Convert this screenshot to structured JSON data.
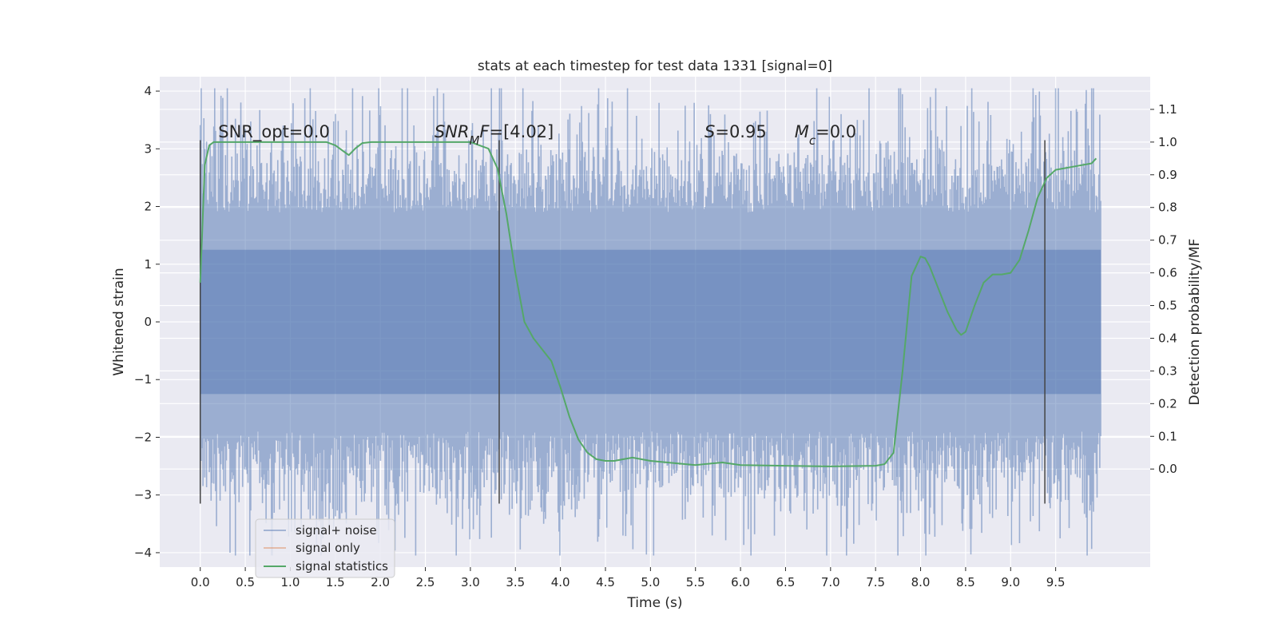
{
  "chart_data": {
    "type": "line",
    "title": "stats at each timestep for test data 1331 [signal=0]",
    "xlabel": "Time (s)",
    "ylabel": "Whitened strain",
    "y2label": "Detection probability/MF",
    "xlim": [
      -0.45,
      10.55
    ],
    "ylim": [
      -4.25,
      4.25
    ],
    "y2lim": [
      -0.3,
      1.2
    ],
    "xticks": [
      0.0,
      0.5,
      1.0,
      1.5,
      2.0,
      2.5,
      3.0,
      3.5,
      4.0,
      4.5,
      5.0,
      5.5,
      6.0,
      6.5,
      7.0,
      7.5,
      8.0,
      8.5,
      9.0,
      9.5
    ],
    "xtick_labels": [
      "0.0",
      "0.5",
      "1.0",
      "1.5",
      "2.0",
      "2.5",
      "3.0",
      "3.5",
      "4.0",
      "4.5",
      "5.0",
      "5.5",
      "6.0",
      "6.5",
      "7.0",
      "7.5",
      "8.0",
      "8.5",
      "9.0",
      "9.5"
    ],
    "yticks": [
      4,
      3,
      2,
      1,
      0,
      -1,
      -2,
      -3,
      -4
    ],
    "ytick_labels": [
      "4",
      "3",
      "2",
      "1",
      "0",
      "−1",
      "−2",
      "−3",
      "−4"
    ],
    "y2ticks": [
      1.1,
      1.0,
      0.9,
      0.8,
      0.7,
      0.6,
      0.5,
      0.4,
      0.3,
      0.2,
      0.1,
      0.0
    ],
    "y2tick_labels": [
      "1.1",
      "1.0",
      "0.9",
      "0.8",
      "0.7",
      "0.6",
      "0.5",
      "0.4",
      "0.3",
      "0.2",
      "0.1",
      "0.0"
    ],
    "grid": true,
    "legend_position": "lower-left",
    "noise_trace": {
      "t_start": 0.0,
      "t_end": 10.0,
      "samples": 1000,
      "typical_envelope": [
        -2.0,
        2.0
      ],
      "max_value": 4.05,
      "min_value": -4.05
    },
    "series": [
      {
        "name": "signal+ noise",
        "color": "#4c72b0",
        "axis": "left",
        "style": "dense noise trace, alpha 0.5"
      },
      {
        "name": "signal only",
        "color": "#dd8452",
        "axis": "left",
        "x": [],
        "y": []
      },
      {
        "name": "signal statistics",
        "color": "#55a868",
        "axis": "right",
        "x": [
          0.0,
          0.05,
          0.1,
          0.15,
          0.25,
          0.5,
          1.0,
          1.4,
          1.5,
          1.6,
          1.65,
          1.72,
          1.8,
          1.9,
          2.0,
          2.5,
          3.0,
          3.2,
          3.3,
          3.4,
          3.5,
          3.6,
          3.7,
          3.9,
          4.0,
          4.1,
          4.2,
          4.3,
          4.4,
          4.5,
          4.6,
          4.7,
          4.8,
          5.0,
          5.5,
          5.6,
          5.8,
          6.0,
          6.5,
          7.0,
          7.5,
          7.6,
          7.7,
          7.8,
          7.9,
          8.0,
          8.05,
          8.1,
          8.2,
          8.3,
          8.4,
          8.45,
          8.5,
          8.6,
          8.7,
          8.8,
          8.9,
          9.0,
          9.1,
          9.2,
          9.3,
          9.4,
          9.5,
          9.7,
          9.9,
          9.95
        ],
        "y": [
          0.57,
          0.93,
          0.99,
          1.0,
          1.0,
          1.0,
          1.0,
          1.0,
          0.99,
          0.97,
          0.96,
          0.98,
          0.997,
          1.0,
          1.0,
          1.0,
          1.0,
          0.98,
          0.92,
          0.78,
          0.6,
          0.45,
          0.4,
          0.33,
          0.25,
          0.16,
          0.09,
          0.05,
          0.03,
          0.025,
          0.025,
          0.03,
          0.035,
          0.025,
          0.012,
          0.015,
          0.02,
          0.012,
          0.01,
          0.008,
          0.01,
          0.015,
          0.05,
          0.3,
          0.59,
          0.65,
          0.645,
          0.62,
          0.55,
          0.48,
          0.425,
          0.41,
          0.42,
          0.5,
          0.57,
          0.595,
          0.595,
          0.6,
          0.64,
          0.73,
          0.83,
          0.89,
          0.915,
          0.925,
          0.935,
          0.95
        ]
      }
    ],
    "vertical_lines": [
      0.0,
      3.32,
      9.38
    ],
    "vline_ylim": [
      -3.15,
      3.15
    ],
    "annotations": [
      {
        "text": "SNR_opt=0.0",
        "x": 0.2,
        "y": 3.2
      },
      {
        "text": "SNR_MF=[4.02]",
        "x": 2.6,
        "y": 3.2,
        "math": true
      },
      {
        "text": "S=0.95",
        "x": 5.6,
        "y": 3.2,
        "math": true
      },
      {
        "text": "M_c=0.0",
        "x": 6.6,
        "y": 3.2,
        "math": true
      }
    ]
  }
}
